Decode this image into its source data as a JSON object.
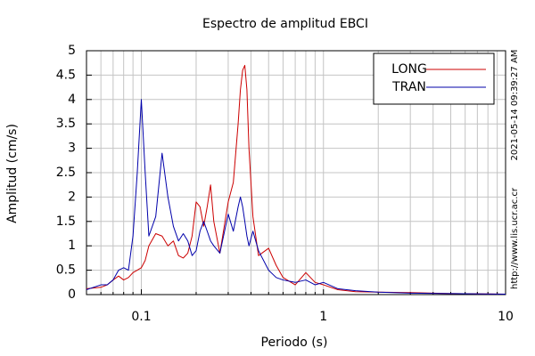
{
  "chart_data": {
    "type": "line",
    "title": "Espectro de amplitud EBCI",
    "x_label": "Periodo (s)",
    "y_label": "Amplitud (cm/s)",
    "timestamp": "2021-05-14 09:39:27 AM",
    "source": "http://www.lis.ucr.ac.cr",
    "x_scale": "log",
    "xlim": [
      0.05,
      10
    ],
    "xticks": [
      0.1,
      1,
      10
    ],
    "x_minor_ticks": [
      0.06,
      0.07,
      0.08,
      0.09,
      0.2,
      0.3,
      0.4,
      0.5,
      0.6,
      0.7,
      0.8,
      0.9,
      2,
      3,
      4,
      5,
      6,
      7,
      8,
      9
    ],
    "ylim": [
      0,
      5
    ],
    "yticks": [
      0,
      0.5,
      1,
      1.5,
      2,
      2.5,
      3,
      3.5,
      4,
      4.5,
      5
    ],
    "grid": true,
    "legend": "top-right",
    "x": [
      0.05,
      0.06,
      0.065,
      0.07,
      0.075,
      0.08,
      0.085,
      0.09,
      0.095,
      0.1,
      0.105,
      0.11,
      0.12,
      0.13,
      0.14,
      0.15,
      0.16,
      0.17,
      0.18,
      0.19,
      0.2,
      0.21,
      0.22,
      0.23,
      0.24,
      0.25,
      0.27,
      0.3,
      0.32,
      0.34,
      0.35,
      0.36,
      0.37,
      0.38,
      0.39,
      0.41,
      0.44,
      0.5,
      0.55,
      0.6,
      0.7,
      0.8,
      0.9,
      1,
      1.2,
      1.5,
      2,
      3,
      5,
      10
    ],
    "series": [
      {
        "name": "LONG",
        "color": "#cc0000",
        "values": [
          0.12,
          0.15,
          0.2,
          0.3,
          0.38,
          0.3,
          0.35,
          0.45,
          0.5,
          0.55,
          0.7,
          1.0,
          1.25,
          1.2,
          1.0,
          1.1,
          0.8,
          0.75,
          0.85,
          1.2,
          1.9,
          1.8,
          1.4,
          1.8,
          2.25,
          1.5,
          0.85,
          1.9,
          2.3,
          3.5,
          4.2,
          4.6,
          4.7,
          4.2,
          3.0,
          1.6,
          0.8,
          0.95,
          0.6,
          0.35,
          0.2,
          0.45,
          0.25,
          0.2,
          0.1,
          0.06,
          0.05,
          0.04,
          0.02,
          0.01
        ]
      },
      {
        "name": "TRAN",
        "color": "#0000aa",
        "values": [
          0.1,
          0.2,
          0.2,
          0.3,
          0.5,
          0.55,
          0.5,
          1.2,
          2.5,
          4.0,
          2.5,
          1.2,
          1.6,
          2.9,
          2.0,
          1.4,
          1.1,
          1.25,
          1.1,
          0.8,
          0.9,
          1.3,
          1.5,
          1.3,
          1.1,
          1.0,
          0.85,
          1.65,
          1.3,
          1.8,
          2.0,
          1.8,
          1.5,
          1.2,
          1.0,
          1.3,
          0.9,
          0.5,
          0.35,
          0.3,
          0.25,
          0.3,
          0.2,
          0.25,
          0.12,
          0.08,
          0.05,
          0.03,
          0.02,
          0.01
        ]
      }
    ]
  }
}
